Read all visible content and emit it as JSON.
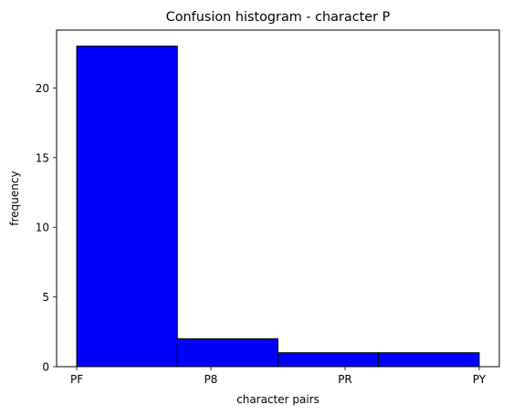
{
  "chart_data": {
    "type": "bar",
    "title": "Confusion histogram - character P",
    "xlabel": "character pairs",
    "ylabel": "frequency",
    "categories": [
      "PF",
      "P8",
      "PR",
      "PY"
    ],
    "bins": [
      {
        "from": 0,
        "to": 1,
        "value": 23
      },
      {
        "from": 1,
        "to": 2,
        "value": 2
      },
      {
        "from": 2,
        "to": 3,
        "value": 1
      },
      {
        "from": 3,
        "to": 4,
        "value": 1
      }
    ],
    "x_ticks": [
      {
        "label": "PF",
        "pos": 0
      },
      {
        "label": "P8",
        "pos": 1.3333
      },
      {
        "label": "PR",
        "pos": 2.6667
      },
      {
        "label": "PY",
        "pos": 4
      }
    ],
    "y_ticks": [
      0,
      5,
      10,
      15,
      20
    ],
    "xlim": [
      -0.2,
      4.2
    ],
    "ylim": [
      0,
      24.15
    ],
    "bar_color": "#0000ff",
    "edge_color": "#000000",
    "grid": false,
    "legend": "none"
  }
}
